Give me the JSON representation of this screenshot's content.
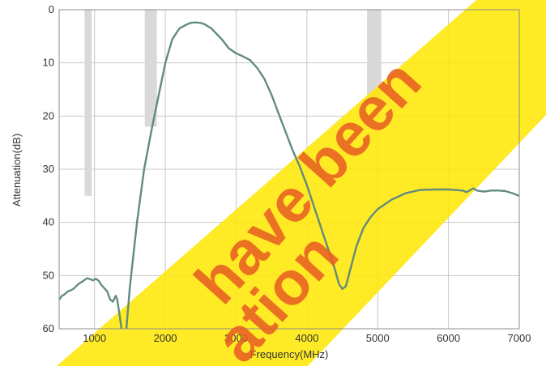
{
  "chart_data": {
    "type": "line",
    "xlabel": "Frequency(MHz)",
    "ylabel": "Attenuation(dB)",
    "xlim": [
      500,
      7000
    ],
    "ylim": [
      0,
      60
    ],
    "y_inverted": true,
    "x_ticks": [
      "1000",
      "2000",
      "3000",
      "4000",
      "5000",
      "6000",
      "7000"
    ],
    "y_ticks": [
      "0",
      "10",
      "20",
      "30",
      "40",
      "50",
      "60"
    ],
    "grid": true,
    "colors": {
      "curve_main": "#1f4e9c",
      "curve_overlay": "#6f9878",
      "spec_band": "#d9d9d9",
      "watermark_band": "#ffe600",
      "watermark_text": "#e85d22",
      "grid": "#c8c8c8"
    },
    "spec_bands": [
      {
        "x": [
          860,
          960
        ],
        "y": [
          0,
          35
        ]
      },
      {
        "x": [
          1710,
          1880
        ],
        "y": [
          0,
          22
        ]
      },
      {
        "x": [
          4850,
          5050
        ],
        "y": [
          0,
          18
        ]
      }
    ],
    "series": [
      {
        "x": [
          500,
          540,
          580,
          620,
          660,
          700,
          740,
          780,
          820,
          860,
          900,
          940,
          980,
          1020,
          1060,
          1100,
          1140,
          1180,
          1220,
          1260,
          1300,
          1320,
          1340,
          1360,
          1380,
          1400,
          1420,
          1440,
          1450,
          1500,
          1600,
          1700,
          1800,
          1900,
          2000,
          2100,
          2200,
          2300,
          2350,
          2400,
          2450,
          2500,
          2550,
          2600,
          2650,
          2700,
          2800,
          2900,
          3000,
          3100,
          3200,
          3300,
          3400,
          3500,
          3600,
          3700,
          3800,
          3900,
          4000,
          4100,
          4200,
          4300,
          4400,
          4450,
          4500,
          4550,
          4600,
          4700,
          4800,
          4900,
          5000,
          5200,
          5400,
          5600,
          5800,
          6000,
          6200,
          6250,
          6300,
          6350,
          6400,
          6500,
          6600,
          6700,
          6800,
          6900,
          7000
        ],
        "y": [
          54.5,
          53.8,
          53.5,
          53,
          52.8,
          52.5,
          52,
          51.5,
          51.2,
          50.8,
          50.5,
          50.7,
          50.9,
          50.6,
          51,
          51.8,
          52.4,
          53,
          54.5,
          54.9,
          53.8,
          54.5,
          56.2,
          58,
          60,
          62,
          63,
          62,
          60,
          52,
          40,
          30,
          23,
          16.5,
          10,
          5.5,
          3.5,
          2.8,
          2.5,
          2.4,
          2.4,
          2.5,
          2.7,
          3.1,
          3.5,
          4.2,
          5.6,
          7.3,
          8.2,
          8.8,
          9.5,
          11,
          13,
          16,
          19.5,
          23,
          26.5,
          29.5,
          33,
          37,
          41,
          45,
          49,
          51.5,
          52.5,
          52,
          49.5,
          44.5,
          41,
          39,
          37.5,
          35.7,
          34.5,
          33.9,
          33.8,
          33.8,
          34,
          34.3,
          34,
          33.6,
          34,
          34.2,
          34,
          34,
          34.1,
          34.5,
          35
        ]
      }
    ]
  },
  "watermark": [
    "have been",
    "ation"
  ]
}
